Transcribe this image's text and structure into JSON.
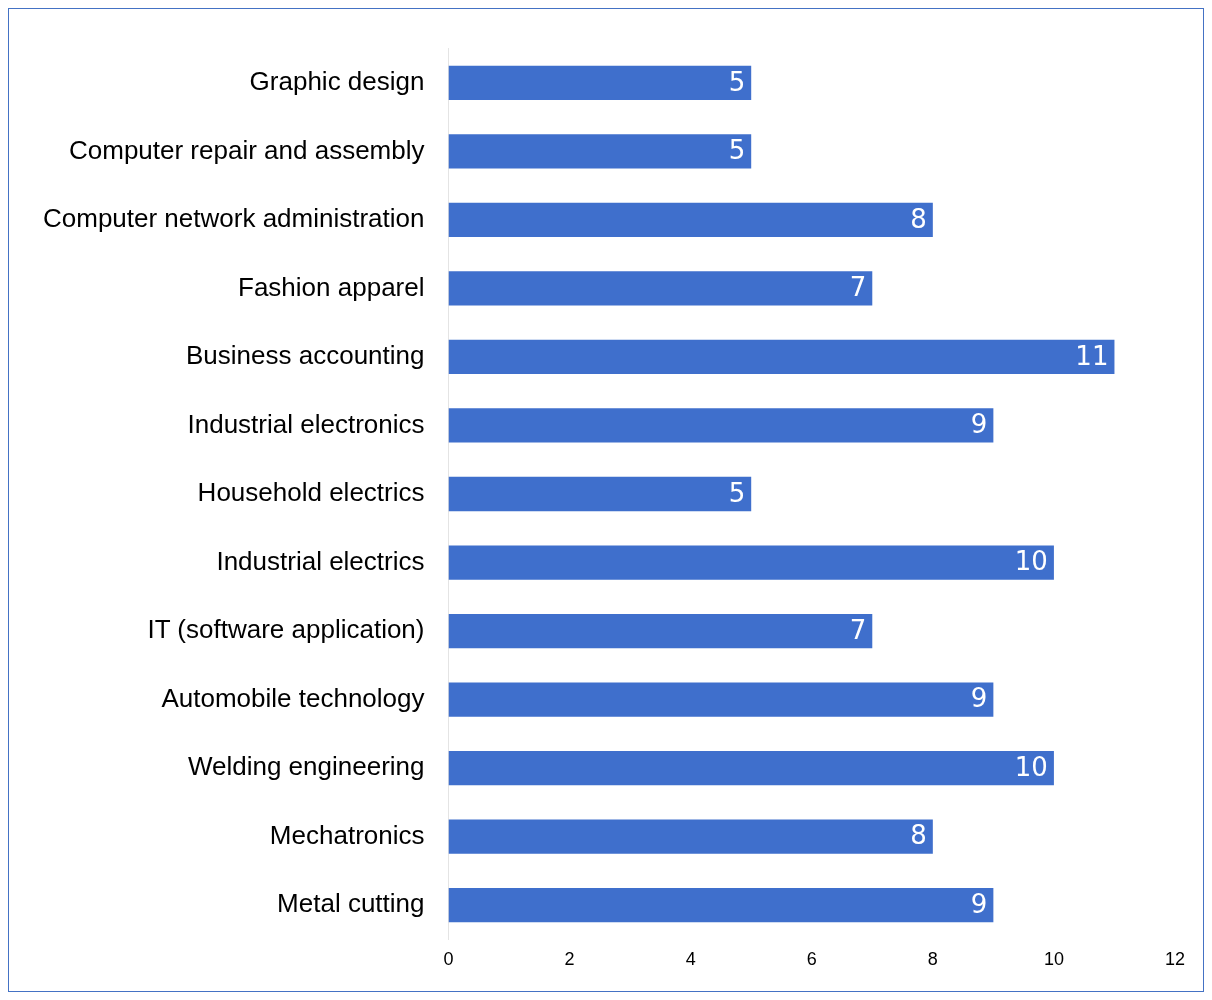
{
  "chart_data": {
    "type": "bar",
    "orientation": "horizontal",
    "categories": [
      "Graphic design",
      "Computer repair and assembly",
      "Computer network administration",
      "Fashion apparel",
      "Business accounting",
      "Industrial electronics",
      "Household electrics",
      "Industrial electrics",
      "IT (software application)",
      "Automobile technology",
      "Welding engineering",
      "Mechatronics",
      "Metal cutting"
    ],
    "values": [
      5,
      5,
      8,
      7,
      11,
      9,
      5,
      10,
      7,
      9,
      10,
      8,
      9
    ],
    "color": "#3f6fcc",
    "xlim": [
      0,
      12
    ],
    "xticks": [
      0,
      2,
      4,
      6,
      8,
      10,
      12
    ],
    "data_labels": true,
    "grid": false,
    "legend": false
  }
}
